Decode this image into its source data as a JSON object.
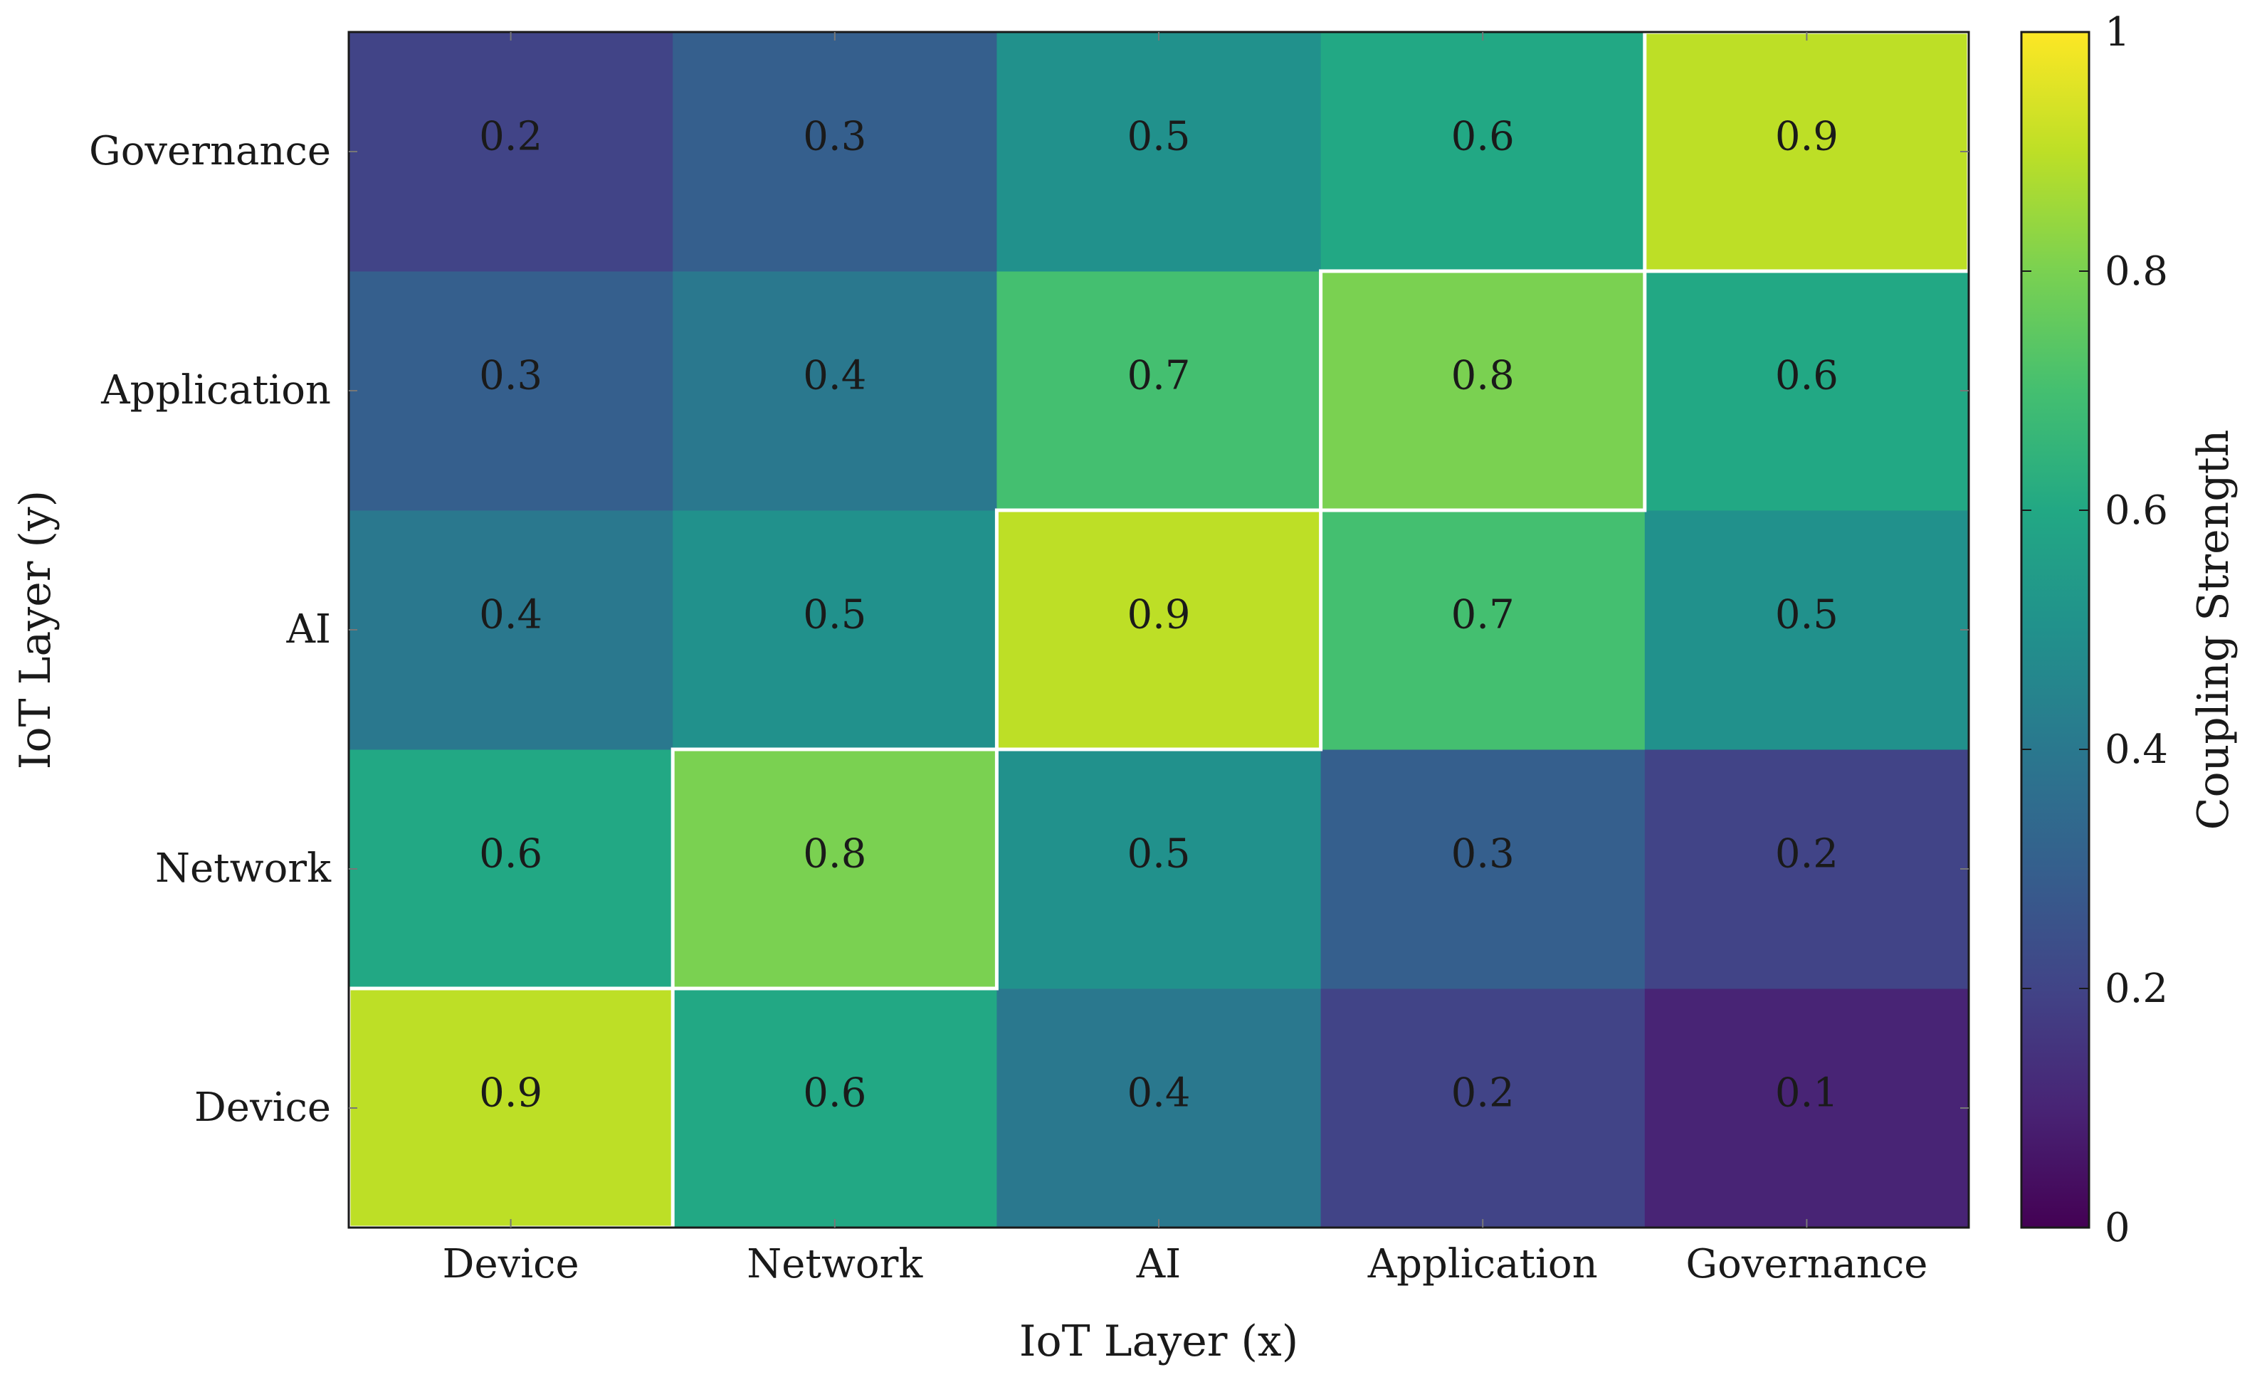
{
  "chart_data": {
    "type": "heatmap",
    "title": "",
    "xlabel": "IoT Layer (x)",
    "ylabel": "IoT Layer (y)",
    "x_categories": [
      "Device",
      "Network",
      "AI",
      "Application",
      "Governance"
    ],
    "y_categories": [
      "Device",
      "Network",
      "AI",
      "Application",
      "Governance"
    ],
    "values": [
      [
        0.9,
        0.6,
        0.4,
        0.2,
        0.1
      ],
      [
        0.6,
        0.8,
        0.5,
        0.3,
        0.2
      ],
      [
        0.4,
        0.5,
        0.9,
        0.7,
        0.5
      ],
      [
        0.3,
        0.4,
        0.7,
        0.8,
        0.6
      ],
      [
        0.2,
        0.3,
        0.5,
        0.6,
        0.9
      ]
    ],
    "highlighted_diagonal": true,
    "colormap": "viridis",
    "colorbar": {
      "label": "Coupling Strength",
      "range": [
        0,
        1
      ],
      "ticks": [
        "0",
        "0.2",
        "0.4",
        "0.6",
        "0.8",
        "1"
      ]
    },
    "grid": false
  }
}
